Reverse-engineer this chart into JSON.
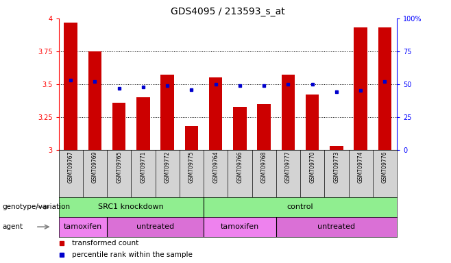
{
  "title": "GDS4095 / 213593_s_at",
  "samples": [
    "GSM709767",
    "GSM709769",
    "GSM709765",
    "GSM709771",
    "GSM709772",
    "GSM709775",
    "GSM709764",
    "GSM709766",
    "GSM709768",
    "GSM709777",
    "GSM709770",
    "GSM709773",
    "GSM709774",
    "GSM709776"
  ],
  "transformed_count": [
    3.97,
    3.75,
    3.36,
    3.4,
    3.57,
    3.18,
    3.55,
    3.33,
    3.35,
    3.57,
    3.42,
    3.03,
    3.93,
    3.93
  ],
  "percentile_rank": [
    53,
    52,
    47,
    48,
    49,
    46,
    50,
    49,
    49,
    50,
    50,
    44,
    45,
    52
  ],
  "ylim_left": [
    3.0,
    4.0
  ],
  "ylim_right": [
    0,
    100
  ],
  "bar_color": "#cc0000",
  "dot_color": "#0000cc",
  "background_samples": "#d3d3d3",
  "genotype_variation": [
    {
      "label": "SRC1 knockdown",
      "start": 0,
      "end": 6,
      "color": "#90ee90"
    },
    {
      "label": "control",
      "start": 6,
      "end": 14,
      "color": "#90ee90"
    }
  ],
  "agent": [
    {
      "label": "tamoxifen",
      "start": 0,
      "end": 2,
      "color": "#ee82ee"
    },
    {
      "label": "untreated",
      "start": 2,
      "end": 6,
      "color": "#da70d6"
    },
    {
      "label": "tamoxifen",
      "start": 6,
      "end": 9,
      "color": "#ee82ee"
    },
    {
      "label": "untreated",
      "start": 9,
      "end": 14,
      "color": "#da70d6"
    }
  ],
  "legend_items": [
    {
      "label": "transformed count",
      "color": "#cc0000"
    },
    {
      "label": "percentile rank within the sample",
      "color": "#0000cc"
    }
  ],
  "title_fontsize": 10,
  "tick_fontsize": 7,
  "sample_fontsize": 5.5,
  "row_label_fontsize": 7.5,
  "annotation_fontsize": 8,
  "legend_fontsize": 7.5
}
